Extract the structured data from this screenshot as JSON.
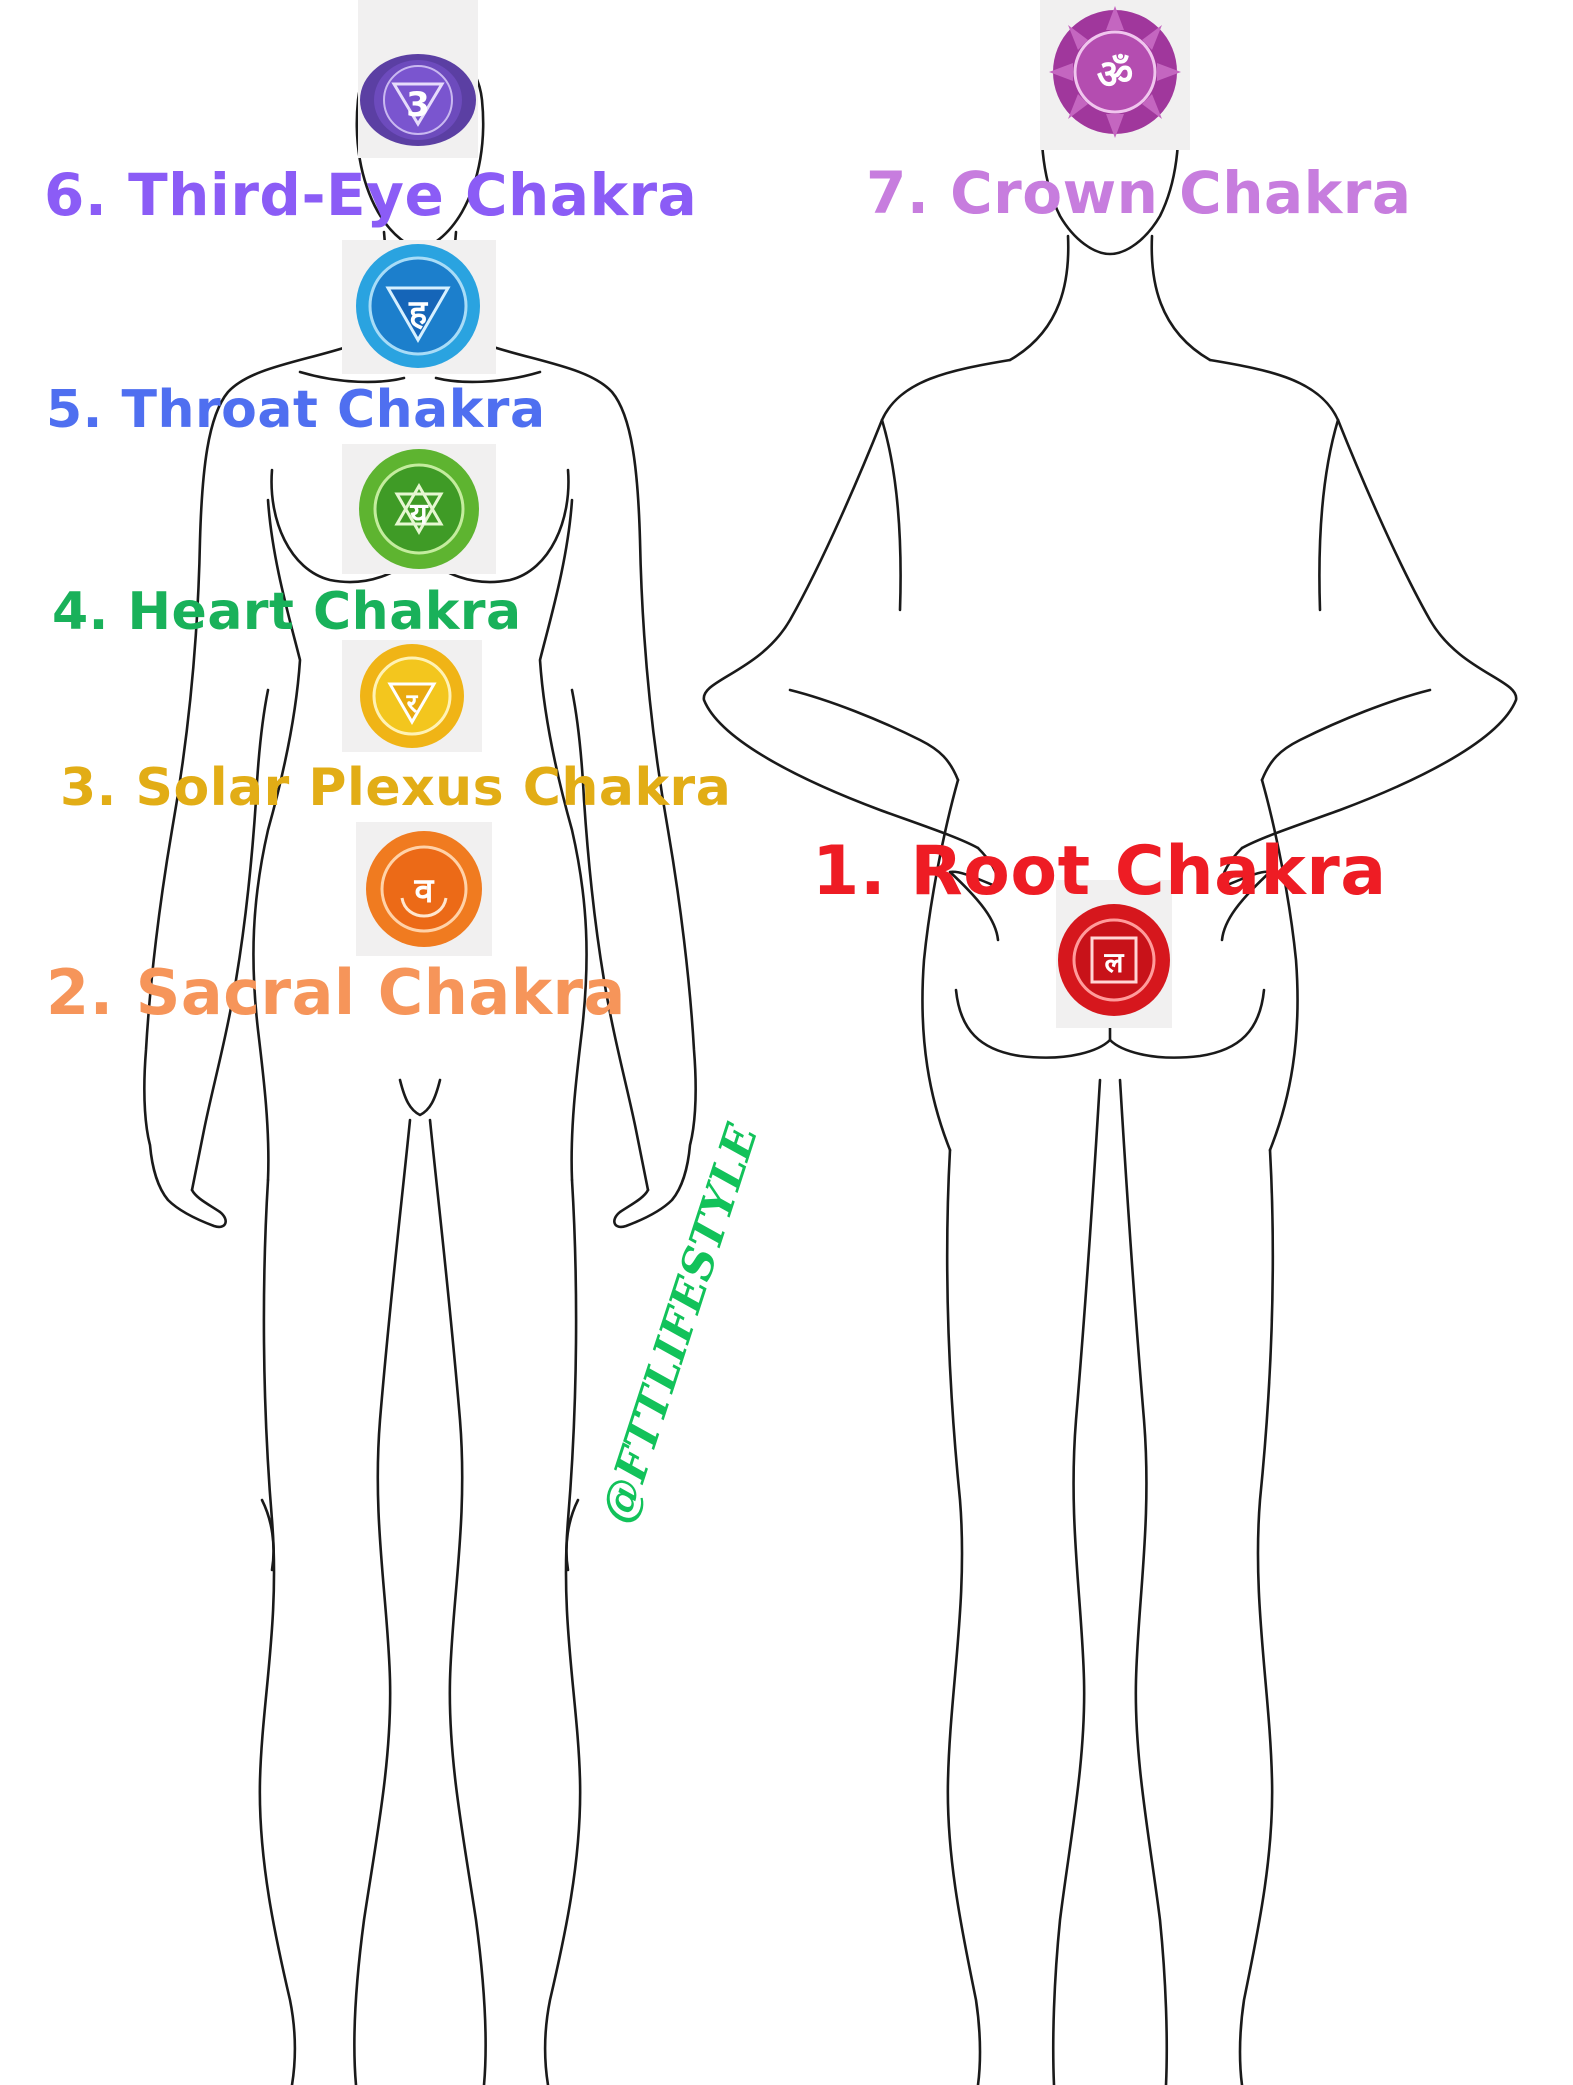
{
  "labels": {
    "third_eye": "6. Third-Eye Chakra",
    "crown": "7. Crown Chakra",
    "throat": "5. Throat Chakra",
    "heart": "4. Heart Chakra",
    "solar_plexus": "3. Solar Plexus Chakra",
    "sacral": "2. Sacral Chakra",
    "root": "1. Root Chakra"
  },
  "watermark": "@FTTLIFESTYLE",
  "colors": {
    "third_eye": "#8b5cf6",
    "crown": "#c77dde",
    "throat": "#4f6ff0",
    "heart": "#19b15a",
    "solar_plexus": "#e2ad16",
    "sacral": "#f6955a",
    "root": "#ee1c24",
    "watermark": "#12c25a",
    "outline": "#1a1a1a"
  },
  "icons": {
    "third_eye": "third-eye-chakra-symbol",
    "crown": "crown-chakra-symbol",
    "throat": "throat-chakra-symbol",
    "heart": "heart-chakra-symbol",
    "solar_plexus": "solar-plexus-chakra-symbol",
    "sacral": "sacral-chakra-symbol",
    "root": "root-chakra-symbol"
  }
}
